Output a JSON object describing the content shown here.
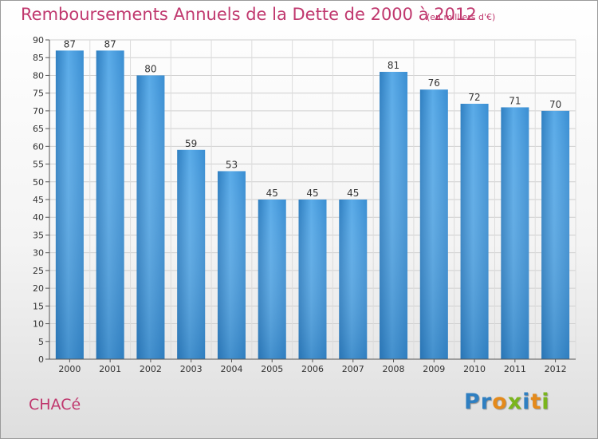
{
  "chart_data": {
    "type": "bar",
    "title": "Remboursements Annuels de la Dette de 2000 à 2012",
    "subtitle": "(en milliers d'€)",
    "categories": [
      "2000",
      "2001",
      "2002",
      "2003",
      "2004",
      "2005",
      "2006",
      "2007",
      "2008",
      "2009",
      "2010",
      "2011",
      "2012"
    ],
    "values": [
      87,
      87,
      80,
      59,
      53,
      45,
      45,
      45,
      81,
      76,
      72,
      71,
      70
    ],
    "ylim": [
      0,
      90
    ],
    "ytick_step": 5,
    "grid": true,
    "bar_color": "#3f8fd0",
    "title_color": "#c0386e"
  },
  "place_name": "CHACé",
  "logo": {
    "letters": [
      "P",
      "r",
      "o",
      "x",
      "i",
      "t",
      "i"
    ],
    "colors": [
      "#2f7fc1",
      "#2f7fc1",
      "#e48a1b",
      "#7ab51d",
      "#2f7fc1",
      "#e48a1b",
      "#7ab51d"
    ]
  }
}
